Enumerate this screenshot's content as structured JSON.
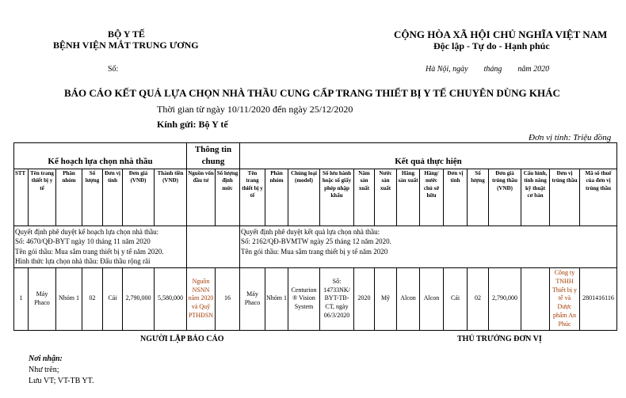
{
  "header_left": {
    "line1": "BỘ Y TẾ",
    "line2": "BỆNH VIỆN MẮT TRUNG ƯƠNG",
    "so": "Số:"
  },
  "header_right": {
    "line1": "CỘNG HÒA XÃ HỘI CHỦ NGHĨA VIỆT NAM",
    "line2": "Độc lập - Tự do - Hạnh phúc",
    "date": "Hà Nội, ngày        tháng        năm 2020"
  },
  "title": "BÁO CÁO KẾT QUẢ LỰA CHỌN NHÀ THẦU CUNG CẤP TRANG THIẾT BỊ Y TẾ CHUYÊN DÙNG KHÁC",
  "period": "Thời gian từ ngày 10/11/2020 đến ngày 25/12/2020",
  "recipient": "Kính gửi: Bộ Y tế",
  "unit": "Đơn vị tính: Triệu đồng",
  "table": {
    "group_plan": "Kế hoạch lựa chọn nhà thầu",
    "group_info": "Thông tin chung",
    "group_result": "Kết quả thực hiện",
    "columns": [
      "STT",
      "Tên trang thiết bị y tế",
      "Phân nhóm",
      "Số lượng",
      "Đơn vị tính",
      "Đơn giá (VNĐ)",
      "Thành tiền (VNĐ)",
      "Nguồn vốn đầu tư",
      "Số lượng định mức",
      "Tên trang thiết bị y tế",
      "Phân nhóm",
      "Chủng loại (model)",
      "Số lưu hành hoặc số giấy phép nhập khẩu",
      "Năm sản xuất",
      "Nước sản xuất",
      "Hãng sản xuất",
      "Hãng/ nước chủ sở hữu",
      "Đơn vị tính",
      "Số lượng",
      "Đơn giá trúng thầu (VNĐ)",
      "Cấu hình, tính năng kỹ thuật cơ bản",
      "Đơn vị trúng thầu",
      "Mã số thuế của đơn vị trúng thầu"
    ],
    "plan_info": [
      "Quyết định phê duyệt kế hoạch lựa chọn nhà thầu:",
      "Số: 4670/QĐ-BYT ngày 10 tháng 11 năm 2020",
      "Tên gói thầu: Mua sắm trang thiết bị y tế năm 2020.",
      "Hình thức lựa chọn nhà thầu: Đấu thầu rộng rãi"
    ],
    "result_info": [
      "Quyết định phê duyệt kết quả lựa chọn nhà thầu:",
      "Số: 2162/QĐ-BVMTW ngày 25 tháng 12 năm 2020.",
      "Tên gói thầu: Mua sắm trang thiết bị y tế năm 2020"
    ],
    "rows": [
      [
        "1",
        "Máy Phaco",
        "Nhóm 1",
        "02",
        "Cái",
        "2,790,000",
        "5,580,000",
        "Nguồn NSNN năm 2020 và Quỹ PTHĐSN",
        "16",
        "Máy Phaco",
        "Nhóm 1",
        "Centurion ® Vision System",
        "Số: 14733NK/ BYT-TB-CT, ngày 06/3/2020",
        "2020",
        "Mỹ",
        "Alcon",
        "Alcon",
        "Cái",
        "02",
        "2,790,000",
        "",
        "Công ty TNHH Thiết bị y tế và Dược phẩm An Phúc",
        "2801416116"
      ]
    ]
  },
  "footer": {
    "preparer": "NGƯỜI LẬP BÁO CÁO",
    "head": "THỦ TRƯỞNG ĐƠN VỊ",
    "recipients_label": "Nơi nhận:",
    "recipients": [
      "Như trên;",
      "Lưu VT; VT-TB YT."
    ]
  }
}
